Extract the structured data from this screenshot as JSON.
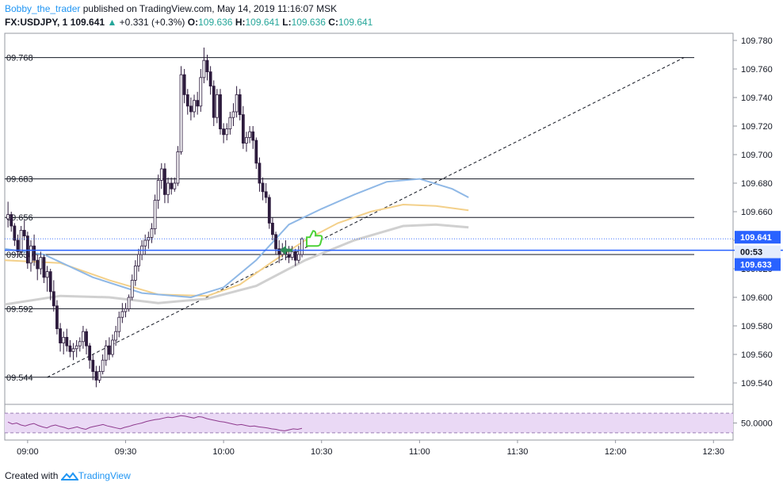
{
  "header": {
    "author": "Bobby_the_trader",
    "published": "published on TradingView.com, May 14, 2019 11:16:07 MSK",
    "symbol": "FX:USDJPY, 1",
    "price": "109.641",
    "change": "+0.331 (+0.3%)",
    "o_label": "O:",
    "o_value": "109.636",
    "h_label": "H:",
    "h_value": "109.641",
    "l_label": "L:",
    "l_value": "109.636",
    "c_label": "C:",
    "c_value": "109.641"
  },
  "footer": {
    "created_with": "Created with",
    "brand": "TradingView"
  },
  "colors": {
    "up_candle": "#ffffff",
    "down_candle": "#2d1b3d",
    "sma_fast": "#8fb8e6",
    "sma_mid": "#f3d08a",
    "sma_slow": "#d0d0d0",
    "blue_line": "#2962ff",
    "rsi_line": "#8e3a8e",
    "rsi_band": "#ead9f5",
    "green_thumb": "#4cd137"
  },
  "chart_data": {
    "type": "candlestick",
    "symbol": "FX:USDJPY",
    "interval": "1",
    "x_ticks": [
      "09:00",
      "09:30",
      "10:00",
      "10:30",
      "11:00",
      "11:30",
      "12:00",
      "12:30"
    ],
    "x_range": [
      "08:53",
      "12:36"
    ],
    "y_range": [
      109.525,
      109.785
    ],
    "y_ticks": [
      109.54,
      109.56,
      109.58,
      109.6,
      109.62,
      109.64,
      109.66,
      109.68,
      109.7,
      109.72,
      109.74,
      109.76,
      109.78
    ],
    "y_tick_labels": [
      "109.540",
      "109.560",
      "109.580",
      "109.600",
      "109.620",
      "109.640",
      "109.660",
      "109.680",
      "109.700",
      "109.720",
      "109.740",
      "109.760",
      "109.780"
    ],
    "grid": false,
    "horizontal_levels": [
      {
        "label": "09.768",
        "value": 109.768
      },
      {
        "label": "09.683",
        "value": 109.683
      },
      {
        "label": "09.656",
        "value": 109.656
      },
      {
        "label": "09.630",
        "value": 109.63
      },
      {
        "label": "09.592",
        "value": 109.592
      },
      {
        "label": "09.544",
        "value": 109.544
      }
    ],
    "trendline": {
      "from": [
        "09:06",
        109.544
      ],
      "to": [
        "12:21",
        109.768
      ]
    },
    "current_price": {
      "value": 109.641,
      "label": "109.641"
    },
    "cursor_price": {
      "value": 109.633,
      "label": "109.633",
      "countdown": "00:53"
    },
    "sma_fast": [
      [
        "08:53",
        109.634
      ],
      [
        "09:05",
        109.63
      ],
      [
        "09:20",
        109.614
      ],
      [
        "09:35",
        109.603
      ],
      [
        "09:50",
        109.6
      ],
      [
        "10:00",
        109.607
      ],
      [
        "10:10",
        109.626
      ],
      [
        "10:20",
        109.651
      ],
      [
        "10:30",
        109.662
      ],
      [
        "10:40",
        109.672
      ],
      [
        "10:50",
        109.681
      ],
      [
        "11:00",
        109.683
      ],
      [
        "11:10",
        109.676
      ],
      [
        "11:15",
        109.67
      ]
    ],
    "sma_mid": [
      [
        "08:53",
        109.626
      ],
      [
        "09:10",
        109.624
      ],
      [
        "09:25",
        109.612
      ],
      [
        "09:40",
        109.602
      ],
      [
        "09:55",
        109.601
      ],
      [
        "10:05",
        109.609
      ],
      [
        "10:15",
        109.625
      ],
      [
        "10:25",
        109.64
      ],
      [
        "10:35",
        109.652
      ],
      [
        "10:45",
        109.66
      ],
      [
        "10:55",
        109.665
      ],
      [
        "11:05",
        109.664
      ],
      [
        "11:15",
        109.661
      ]
    ],
    "sma_slow": [
      [
        "08:53",
        109.595
      ],
      [
        "09:10",
        109.601
      ],
      [
        "09:25",
        109.6
      ],
      [
        "09:40",
        109.596
      ],
      [
        "09:55",
        109.599
      ],
      [
        "10:10",
        109.608
      ],
      [
        "10:25",
        109.626
      ],
      [
        "10:40",
        109.64
      ],
      [
        "10:55",
        109.65
      ],
      [
        "11:05",
        109.651
      ],
      [
        "11:15",
        109.649
      ]
    ],
    "candles": [
      {
        "t": "08:54",
        "o": 109.655,
        "h": 109.667,
        "l": 109.649,
        "c": 109.658
      },
      {
        "t": "08:55",
        "o": 109.658,
        "h": 109.66,
        "l": 109.646,
        "c": 109.65
      },
      {
        "t": "08:56",
        "o": 109.65,
        "h": 109.652,
        "l": 109.636,
        "c": 109.64
      },
      {
        "t": "08:57",
        "o": 109.64,
        "h": 109.644,
        "l": 109.628,
        "c": 109.632
      },
      {
        "t": "08:58",
        "o": 109.632,
        "h": 109.65,
        "l": 109.63,
        "c": 109.647
      },
      {
        "t": "08:59",
        "o": 109.647,
        "h": 109.654,
        "l": 109.64,
        "c": 109.643
      },
      {
        "t": "09:00",
        "o": 109.643,
        "h": 109.646,
        "l": 109.62,
        "c": 109.624
      },
      {
        "t": "09:01",
        "o": 109.624,
        "h": 109.64,
        "l": 109.618,
        "c": 109.636
      },
      {
        "t": "09:02",
        "o": 109.636,
        "h": 109.644,
        "l": 109.622,
        "c": 109.626
      },
      {
        "t": "09:03",
        "o": 109.626,
        "h": 109.63,
        "l": 109.612,
        "c": 109.62
      },
      {
        "t": "09:04",
        "o": 109.62,
        "h": 109.632,
        "l": 109.616,
        "c": 109.628
      },
      {
        "t": "09:05",
        "o": 109.628,
        "h": 109.63,
        "l": 109.61,
        "c": 109.614
      },
      {
        "t": "09:06",
        "o": 109.614,
        "h": 109.622,
        "l": 109.604,
        "c": 109.618
      },
      {
        "t": "09:07",
        "o": 109.618,
        "h": 109.62,
        "l": 109.598,
        "c": 109.604
      },
      {
        "t": "09:08",
        "o": 109.604,
        "h": 109.612,
        "l": 109.59,
        "c": 109.594
      },
      {
        "t": "09:09",
        "o": 109.594,
        "h": 109.598,
        "l": 109.574,
        "c": 109.578
      },
      {
        "t": "09:10",
        "o": 109.578,
        "h": 109.582,
        "l": 109.562,
        "c": 109.568
      },
      {
        "t": "09:11",
        "o": 109.568,
        "h": 109.576,
        "l": 109.56,
        "c": 109.572
      },
      {
        "t": "09:12",
        "o": 109.572,
        "h": 109.578,
        "l": 109.562,
        "c": 109.566
      },
      {
        "t": "09:13",
        "o": 109.566,
        "h": 109.57,
        "l": 109.558,
        "c": 109.562
      },
      {
        "t": "09:14",
        "o": 109.562,
        "h": 109.568,
        "l": 109.556,
        "c": 109.564
      },
      {
        "t": "09:15",
        "o": 109.564,
        "h": 109.57,
        "l": 109.558,
        "c": 109.566
      },
      {
        "t": "09:16",
        "o": 109.566,
        "h": 109.572,
        "l": 109.562,
        "c": 109.569
      },
      {
        "t": "09:17",
        "o": 109.569,
        "h": 109.58,
        "l": 109.564,
        "c": 109.576
      },
      {
        "t": "09:18",
        "o": 109.576,
        "h": 109.578,
        "l": 109.56,
        "c": 109.566
      },
      {
        "t": "09:19",
        "o": 109.566,
        "h": 109.568,
        "l": 109.55,
        "c": 109.556
      },
      {
        "t": "09:20",
        "o": 109.556,
        "h": 109.56,
        "l": 109.542,
        "c": 109.548
      },
      {
        "t": "09:21",
        "o": 109.548,
        "h": 109.552,
        "l": 109.537,
        "c": 109.542
      },
      {
        "t": "09:22",
        "o": 109.542,
        "h": 109.552,
        "l": 109.54,
        "c": 109.548
      },
      {
        "t": "09:23",
        "o": 109.548,
        "h": 109.56,
        "l": 109.546,
        "c": 109.556
      },
      {
        "t": "09:24",
        "o": 109.556,
        "h": 109.57,
        "l": 109.552,
        "c": 109.566
      },
      {
        "t": "09:25",
        "o": 109.566,
        "h": 109.572,
        "l": 109.556,
        "c": 109.56
      },
      {
        "t": "09:26",
        "o": 109.56,
        "h": 109.574,
        "l": 109.558,
        "c": 109.57
      },
      {
        "t": "09:27",
        "o": 109.57,
        "h": 109.58,
        "l": 109.566,
        "c": 109.576
      },
      {
        "t": "09:28",
        "o": 109.576,
        "h": 109.59,
        "l": 109.572,
        "c": 109.586
      },
      {
        "t": "09:29",
        "o": 109.586,
        "h": 109.596,
        "l": 109.582,
        "c": 109.59
      },
      {
        "t": "09:30",
        "o": 109.59,
        "h": 109.596,
        "l": 109.586,
        "c": 109.592
      },
      {
        "t": "09:31",
        "o": 109.592,
        "h": 109.602,
        "l": 109.59,
        "c": 109.6
      },
      {
        "t": "09:32",
        "o": 109.6,
        "h": 109.616,
        "l": 109.598,
        "c": 109.612
      },
      {
        "t": "09:33",
        "o": 109.612,
        "h": 109.626,
        "l": 109.608,
        "c": 109.622
      },
      {
        "t": "09:34",
        "o": 109.622,
        "h": 109.634,
        "l": 109.618,
        "c": 109.63
      },
      {
        "t": "09:35",
        "o": 109.63,
        "h": 109.64,
        "l": 109.626,
        "c": 109.636
      },
      {
        "t": "09:36",
        "o": 109.636,
        "h": 109.644,
        "l": 109.63,
        "c": 109.64
      },
      {
        "t": "09:37",
        "o": 109.64,
        "h": 109.646,
        "l": 109.634,
        "c": 109.642
      },
      {
        "t": "09:38",
        "o": 109.642,
        "h": 109.652,
        "l": 109.638,
        "c": 109.648
      },
      {
        "t": "09:39",
        "o": 109.648,
        "h": 109.672,
        "l": 109.644,
        "c": 109.668
      },
      {
        "t": "09:40",
        "o": 109.668,
        "h": 109.686,
        "l": 109.662,
        "c": 109.682
      },
      {
        "t": "09:41",
        "o": 109.682,
        "h": 109.694,
        "l": 109.676,
        "c": 109.69
      },
      {
        "t": "09:42",
        "o": 109.69,
        "h": 109.694,
        "l": 109.666,
        "c": 109.672
      },
      {
        "t": "09:43",
        "o": 109.672,
        "h": 109.684,
        "l": 109.666,
        "c": 109.68
      },
      {
        "t": "09:44",
        "o": 109.68,
        "h": 109.684,
        "l": 109.672,
        "c": 109.676
      },
      {
        "t": "09:45",
        "o": 109.676,
        "h": 109.684,
        "l": 109.674,
        "c": 109.68
      },
      {
        "t": "09:46",
        "o": 109.68,
        "h": 109.706,
        "l": 109.678,
        "c": 109.702
      },
      {
        "t": "09:47",
        "o": 109.702,
        "h": 109.762,
        "l": 109.7,
        "c": 109.756
      },
      {
        "t": "09:48",
        "o": 109.756,
        "h": 109.76,
        "l": 109.736,
        "c": 109.742
      },
      {
        "t": "09:49",
        "o": 109.742,
        "h": 109.746,
        "l": 109.728,
        "c": 109.734
      },
      {
        "t": "09:50",
        "o": 109.734,
        "h": 109.74,
        "l": 109.724,
        "c": 109.73
      },
      {
        "t": "09:51",
        "o": 109.73,
        "h": 109.742,
        "l": 109.726,
        "c": 109.738
      },
      {
        "t": "09:52",
        "o": 109.738,
        "h": 109.744,
        "l": 109.728,
        "c": 109.734
      },
      {
        "t": "09:53",
        "o": 109.734,
        "h": 109.76,
        "l": 109.73,
        "c": 109.754
      },
      {
        "t": "09:54",
        "o": 109.754,
        "h": 109.775,
        "l": 109.75,
        "c": 109.766
      },
      {
        "t": "09:55",
        "o": 109.766,
        "h": 109.77,
        "l": 109.752,
        "c": 109.758
      },
      {
        "t": "09:56",
        "o": 109.758,
        "h": 109.762,
        "l": 109.742,
        "c": 109.748
      },
      {
        "t": "09:57",
        "o": 109.748,
        "h": 109.752,
        "l": 109.72,
        "c": 109.726
      },
      {
        "t": "09:58",
        "o": 109.726,
        "h": 109.746,
        "l": 109.722,
        "c": 109.742
      },
      {
        "t": "09:59",
        "o": 109.742,
        "h": 109.746,
        "l": 109.714,
        "c": 109.718
      },
      {
        "t": "10:00",
        "o": 109.718,
        "h": 109.722,
        "l": 109.708,
        "c": 109.714
      },
      {
        "t": "10:01",
        "o": 109.714,
        "h": 109.722,
        "l": 109.71,
        "c": 109.718
      },
      {
        "t": "10:02",
        "o": 109.718,
        "h": 109.73,
        "l": 109.714,
        "c": 109.726
      },
      {
        "t": "10:03",
        "o": 109.726,
        "h": 109.736,
        "l": 109.72,
        "c": 109.73
      },
      {
        "t": "10:04",
        "o": 109.73,
        "h": 109.748,
        "l": 109.726,
        "c": 109.742
      },
      {
        "t": "10:05",
        "o": 109.742,
        "h": 109.746,
        "l": 109.724,
        "c": 109.728
      },
      {
        "t": "10:06",
        "o": 109.728,
        "h": 109.734,
        "l": 109.704,
        "c": 109.708
      },
      {
        "t": "10:07",
        "o": 109.708,
        "h": 109.716,
        "l": 109.702,
        "c": 109.712
      },
      {
        "t": "10:08",
        "o": 109.712,
        "h": 109.72,
        "l": 109.708,
        "c": 109.716
      },
      {
        "t": "10:09",
        "o": 109.716,
        "h": 109.72,
        "l": 109.704,
        "c": 109.71
      },
      {
        "t": "10:10",
        "o": 109.71,
        "h": 109.712,
        "l": 109.69,
        "c": 109.694
      },
      {
        "t": "10:11",
        "o": 109.694,
        "h": 109.698,
        "l": 109.674,
        "c": 109.68
      },
      {
        "t": "10:12",
        "o": 109.68,
        "h": 109.684,
        "l": 109.668,
        "c": 109.674
      },
      {
        "t": "10:13",
        "o": 109.674,
        "h": 109.68,
        "l": 109.666,
        "c": 109.67
      },
      {
        "t": "10:14",
        "o": 109.67,
        "h": 109.672,
        "l": 109.648,
        "c": 109.652
      },
      {
        "t": "10:15",
        "o": 109.652,
        "h": 109.656,
        "l": 109.64,
        "c": 109.644
      },
      {
        "t": "10:16",
        "o": 109.644,
        "h": 109.646,
        "l": 109.63,
        "c": 109.634
      },
      {
        "t": "10:17",
        "o": 109.634,
        "h": 109.64,
        "l": 109.624,
        "c": 109.63
      },
      {
        "t": "10:18",
        "o": 109.63,
        "h": 109.638,
        "l": 109.628,
        "c": 109.634
      },
      {
        "t": "10:19",
        "o": 109.634,
        "h": 109.64,
        "l": 109.626,
        "c": 109.63
      },
      {
        "t": "10:20",
        "o": 109.63,
        "h": 109.636,
        "l": 109.624,
        "c": 109.628
      },
      {
        "t": "10:21",
        "o": 109.628,
        "h": 109.636,
        "l": 109.626,
        "c": 109.632
      },
      {
        "t": "10:22",
        "o": 109.632,
        "h": 109.634,
        "l": 109.622,
        "c": 109.626
      },
      {
        "t": "10:23",
        "o": 109.626,
        "h": 109.636,
        "l": 109.624,
        "c": 109.63
      },
      {
        "t": "10:24",
        "o": 109.63,
        "h": 109.642,
        "l": 109.628,
        "c": 109.641
      }
    ],
    "rsi": {
      "level_label": "50.0000",
      "band": [
        30,
        70
      ],
      "ylim": [
        20,
        80
      ],
      "values": [
        52,
        48,
        50,
        46,
        44,
        47,
        49,
        45,
        42,
        40,
        44,
        46,
        43,
        41,
        38,
        40,
        42,
        39,
        37,
        41,
        43,
        45,
        47,
        44,
        42,
        40,
        38,
        41,
        43,
        46,
        48,
        50,
        53,
        55,
        57,
        58,
        60,
        62,
        61,
        63,
        65,
        64,
        62,
        60,
        63,
        62,
        59,
        57,
        55,
        53,
        52,
        50,
        48,
        46,
        47,
        45,
        43,
        44,
        42,
        41,
        40,
        38,
        37,
        35,
        34,
        36,
        38,
        37,
        39
      ]
    }
  }
}
